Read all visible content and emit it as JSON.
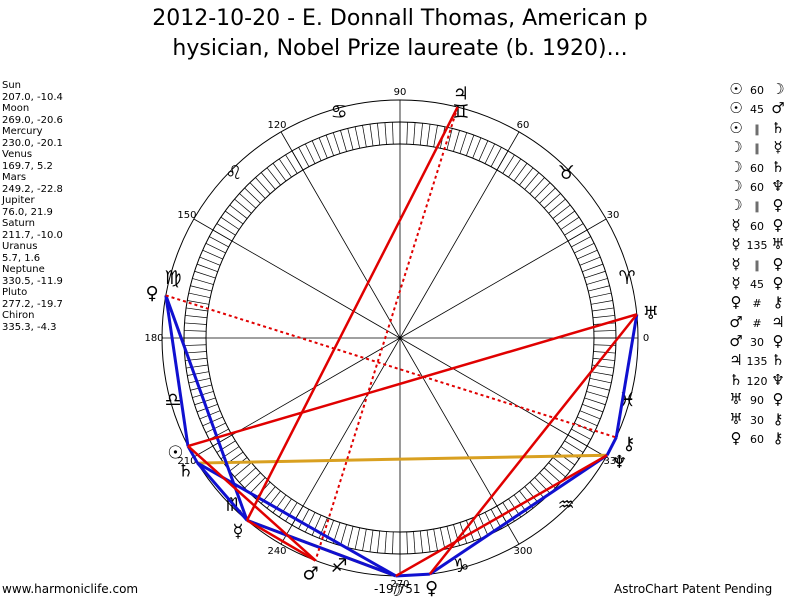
{
  "title": {
    "line1": "2012-10-20 - E. Donnall Thomas, American p",
    "line2": "hysician, Nobel Prize laureate (b. 1920)..."
  },
  "planet_list": [
    {
      "name": "Sun",
      "value": "207.0, -10.4"
    },
    {
      "name": "Moon",
      "value": "269.0, -20.6"
    },
    {
      "name": "Mercury",
      "value": "230.0, -20.1"
    },
    {
      "name": "Venus",
      "value": "169.7, 5.2"
    },
    {
      "name": "Mars",
      "value": "249.2, -22.8"
    },
    {
      "name": "Jupiter",
      "value": "76.0, 21.9"
    },
    {
      "name": "Saturn",
      "value": "211.7, -10.0"
    },
    {
      "name": "Uranus",
      "value": "5.7, 1.6"
    },
    {
      "name": "Neptune",
      "value": "330.5, -11.9"
    },
    {
      "name": "Pluto",
      "value": "277.2, -19.7"
    },
    {
      "name": "Chiron",
      "value": "335.3, -4.3"
    }
  ],
  "aspects": [
    {
      "p1": "☉",
      "a": "60",
      "p2": "☽"
    },
    {
      "p1": "☉",
      "a": "45",
      "p2": "♂"
    },
    {
      "p1": "☉",
      "a": "∥",
      "p2": "♄"
    },
    {
      "p1": "☽",
      "a": "∥",
      "p2": "☿"
    },
    {
      "p1": "☽",
      "a": "60",
      "p2": "♄"
    },
    {
      "p1": "☽",
      "a": "60",
      "p2": "♆"
    },
    {
      "p1": "☽",
      "a": "∥",
      "p2": "♀"
    },
    {
      "p1": "☿",
      "a": "60",
      "p2": "♀"
    },
    {
      "p1": "☿",
      "a": "135",
      "p2": "♅"
    },
    {
      "p1": "☿",
      "a": "∥",
      "p2": "♀"
    },
    {
      "p1": "☿",
      "a": "45",
      "p2": "♀"
    },
    {
      "p1": "♀",
      "a": "#",
      "p2": "⚷"
    },
    {
      "p1": "♂",
      "a": "#",
      "p2": "♃"
    },
    {
      "p1": "♂",
      "a": "30",
      "p2": "♀"
    },
    {
      "p1": "♃",
      "a": "135",
      "p2": "♄"
    },
    {
      "p1": "♄",
      "a": "120",
      "p2": "♆"
    },
    {
      "p1": "♅",
      "a": "90",
      "p2": "♀"
    },
    {
      "p1": "♅",
      "a": "30",
      "p2": "⚷"
    },
    {
      "p1": "♀",
      "a": "60",
      "p2": "⚷"
    }
  ],
  "degree_labels": [
    "0",
    "30",
    "60",
    "90",
    "120",
    "150",
    "180",
    "210",
    "240",
    "270",
    "300",
    "330"
  ],
  "zodiac_signs": [
    "♈",
    "♉",
    "♊",
    "♋",
    "♌",
    "♍",
    "♎",
    "♏",
    "♐",
    "♑",
    "♒",
    "♓"
  ],
  "chart_planets": [
    {
      "name": "Sun",
      "glyph": "☉",
      "longitude": 207.0
    },
    {
      "name": "Moon",
      "glyph": "☽",
      "longitude": 269.0
    },
    {
      "name": "Mercury",
      "glyph": "☿",
      "longitude": 230.0
    },
    {
      "name": "Venus",
      "glyph": "♀",
      "longitude": 169.7
    },
    {
      "name": "Mars",
      "glyph": "♂",
      "longitude": 249.2
    },
    {
      "name": "Jupiter",
      "glyph": "♃",
      "longitude": 76.0
    },
    {
      "name": "Saturn",
      "glyph": "♄",
      "longitude": 211.7
    },
    {
      "name": "Uranus",
      "glyph": "♅",
      "longitude": 5.7
    },
    {
      "name": "Neptune",
      "glyph": "♆",
      "longitude": 330.5
    },
    {
      "name": "Pluto",
      "glyph": "♀",
      "longitude": 277.2
    },
    {
      "name": "Chiron",
      "glyph": "⚷",
      "longitude": 335.3
    }
  ],
  "aspect_lines": {
    "red_solid": [
      [
        "Jupiter",
        "Mercury"
      ],
      [
        "Uranus",
        "Sun"
      ],
      [
        "Uranus",
        "Pluto"
      ],
      [
        "Moon",
        "Neptune"
      ],
      [
        "Mars",
        "Mercury"
      ],
      [
        "Sun",
        "Mars"
      ]
    ],
    "red_dotted": [
      [
        "Jupiter",
        "Mars"
      ],
      [
        "Venus",
        "Chiron"
      ]
    ],
    "blue": [
      [
        "Venus",
        "Sun"
      ],
      [
        "Sun",
        "Saturn"
      ],
      [
        "Saturn",
        "Mercury"
      ],
      [
        "Mercury",
        "Moon"
      ],
      [
        "Moon",
        "Pluto"
      ],
      [
        "Pluto",
        "Neptune"
      ],
      [
        "Neptune",
        "Chiron"
      ],
      [
        "Chiron",
        "Uranus"
      ],
      [
        "Saturn",
        "Moon"
      ],
      [
        "Mercury",
        "Venus"
      ]
    ],
    "orange": [
      [
        "Saturn",
        "Neptune"
      ],
      [
        "Mercury",
        "Moon"
      ]
    ]
  },
  "colors": {
    "red": "#e00000",
    "blue": "#1010d0",
    "orange": "#d9a020"
  },
  "footer": {
    "left": "www.harmoniclife.com",
    "mid": "-19/751",
    "right": "AstroChart Patent Pending"
  }
}
